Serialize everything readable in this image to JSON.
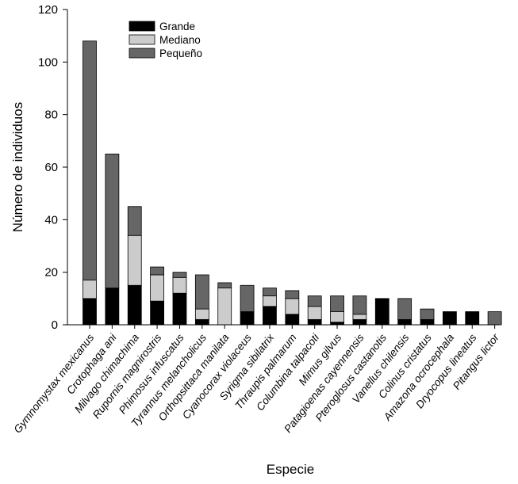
{
  "chart_data": {
    "type": "bar",
    "stacked": true,
    "xlabel": "Especie",
    "ylabel": "Número de individuos",
    "ylim": [
      0,
      120
    ],
    "yticks": [
      0,
      20,
      40,
      60,
      80,
      100,
      120
    ],
    "grid": false,
    "legend_position": "top-left",
    "categories": [
      "Gymnomystax mexicanus",
      "Crotophaga ani",
      "Milvago chimachima",
      "Rupornis magnirostris",
      "Phimosus infuscatus",
      "Tyrannus melancholicus",
      "Orthopsittaca manilata",
      "Cyanocorax violaceus",
      "Syrigma sibilatrix",
      "Thraupis palmarum",
      "Columbina talpacoti",
      "Mimus gilvus",
      "Patagioenas cayennensis",
      "Pteroglosus castanotis",
      "Vanellus chilensis",
      "Colinus cristatus",
      "Amazona ocrocephala",
      "Dryocopus lineatus",
      "Pitangus lictor"
    ],
    "series": [
      {
        "name": "Grande",
        "color": "#000000",
        "values": [
          10,
          14,
          15,
          9,
          12,
          2,
          0,
          5,
          7,
          4,
          2,
          1,
          2,
          10,
          2,
          2,
          5,
          5,
          0
        ]
      },
      {
        "name": "Mediano",
        "color": "#cccccc",
        "values": [
          7,
          0,
          19,
          10,
          6,
          4,
          14,
          0,
          4,
          6,
          5,
          4,
          2,
          0,
          0,
          0,
          0,
          0,
          0
        ]
      },
      {
        "name": "Pequeño",
        "color": "#666666",
        "values": [
          91,
          51,
          11,
          3,
          2,
          13,
          2,
          10,
          3,
          3,
          4,
          6,
          7,
          0,
          8,
          4,
          0,
          0,
          5
        ]
      }
    ]
  }
}
